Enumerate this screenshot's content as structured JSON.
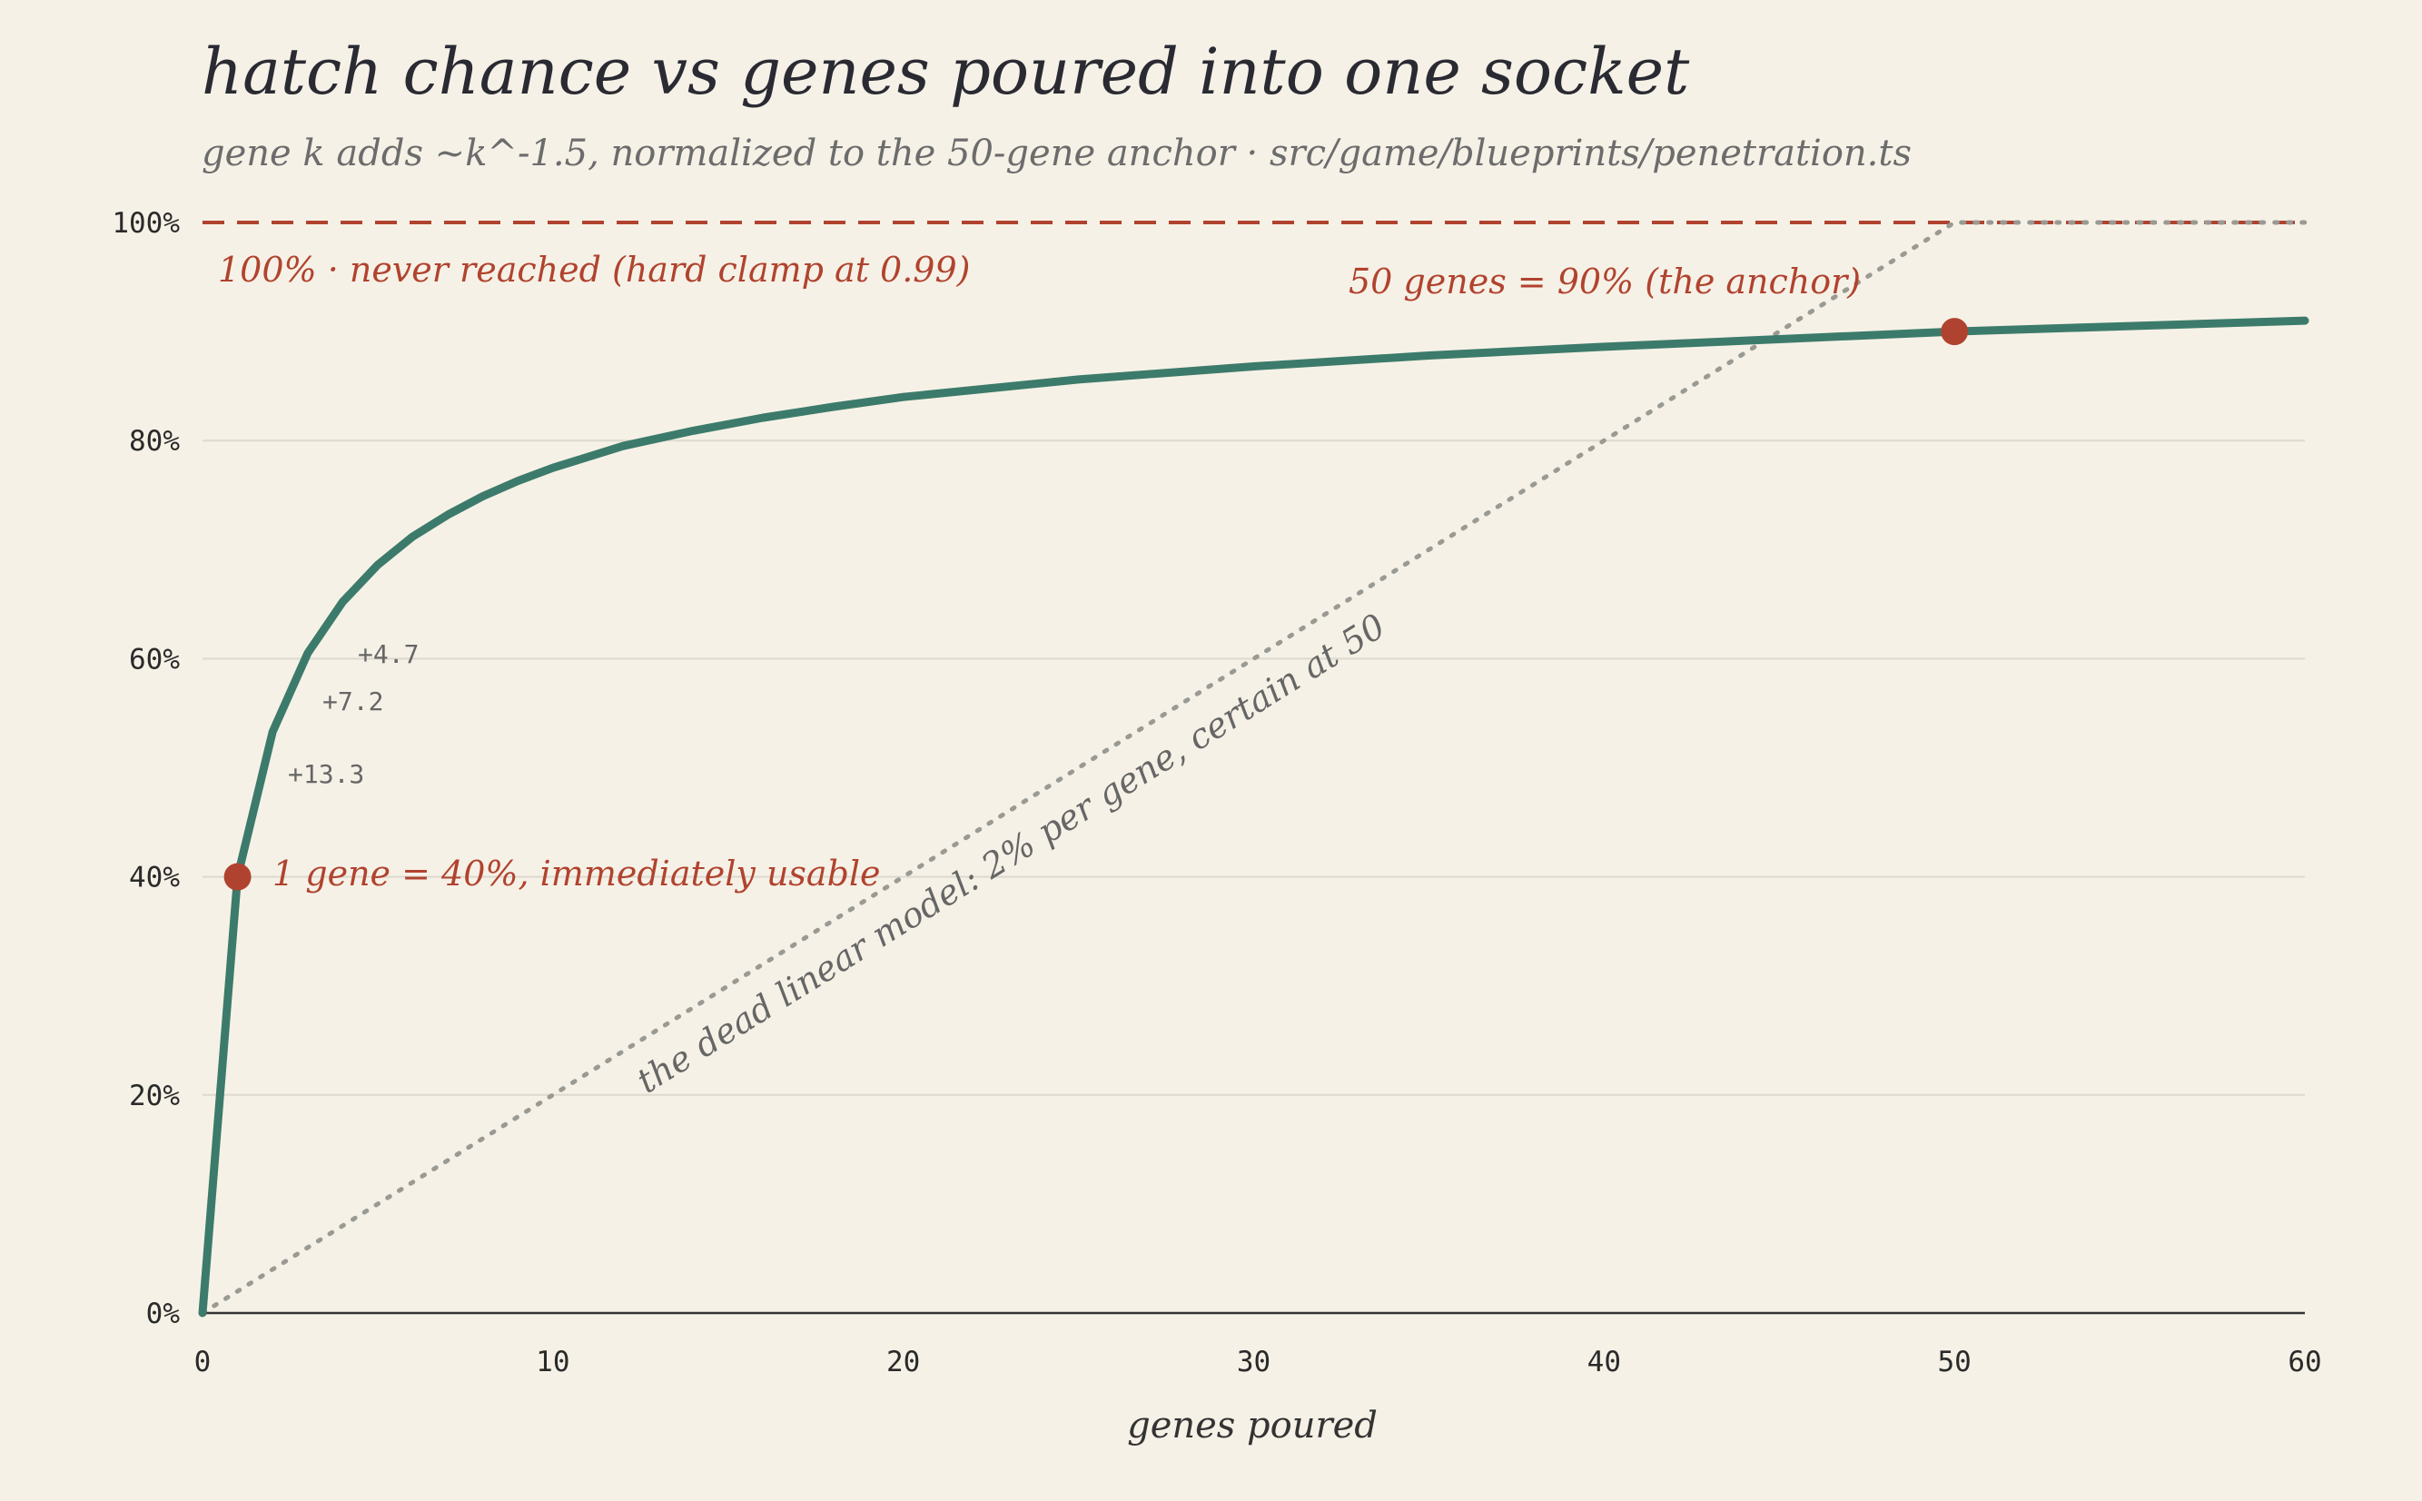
{
  "colors": {
    "background": "#f6f1e6",
    "curve": "#3c7b6b",
    "accent": "#b0432f",
    "linear": "#9a9a94",
    "grid": "#ddd9cf",
    "axis": "#333333"
  },
  "chart_data": {
    "type": "line",
    "title": "hatch chance vs genes poured into one socket",
    "subtitle": "gene k adds ~k^-1.5, normalized to the 50-gene anchor · src/game/blueprints/penetration.ts",
    "xlabel": "genes poured",
    "ylabel": "",
    "xlim": [
      0,
      60
    ],
    "ylim": [
      0,
      100
    ],
    "x_ticks": [
      0,
      10,
      20,
      30,
      40,
      50,
      60
    ],
    "x_tick_labels": [
      "0",
      "10",
      "20",
      "30",
      "40",
      "50",
      "60"
    ],
    "y_ticks": [
      0,
      20,
      40,
      60,
      80,
      100
    ],
    "y_tick_labels": [
      "0%",
      "20%",
      "40%",
      "60%",
      "80%",
      "100%"
    ],
    "grid": "horizontal",
    "legend": "none",
    "series": [
      {
        "x": [
          0,
          1,
          2,
          3,
          4,
          5,
          6,
          7,
          8,
          9,
          10,
          12,
          14,
          16,
          18,
          20,
          25,
          30,
          35,
          40,
          45,
          50,
          55,
          60
        ],
        "y": [
          0,
          40,
          53.3,
          60.5,
          65.2,
          68.6,
          71.2,
          73.2,
          74.9,
          76.3,
          77.5,
          79.5,
          80.9,
          82.1,
          83.1,
          84.0,
          85.6,
          86.8,
          87.8,
          88.6,
          89.3,
          90.0,
          90.5,
          91.0
        ]
      },
      {
        "x": [
          0,
          50,
          60
        ],
        "y": [
          0,
          100,
          100
        ]
      }
    ],
    "ceiling": {
      "y": 100,
      "label": "100% · never reached (hard clamp at 0.99)"
    },
    "highlight_points": [
      {
        "x": 1,
        "y": 40,
        "label": "1 gene = 40%, immediately usable"
      },
      {
        "x": 50,
        "y": 90,
        "label": "50 genes = 90% (the anchor)"
      }
    ],
    "step_labels": [
      {
        "x": 2,
        "y": 53.3,
        "label": "+13.3"
      },
      {
        "x": 3,
        "y": 60.5,
        "label": "+7.2"
      },
      {
        "x": 4,
        "y": 65.2,
        "label": "+4.7"
      }
    ],
    "linear_label": "the dead linear model: 2% per gene, certain at 50"
  }
}
